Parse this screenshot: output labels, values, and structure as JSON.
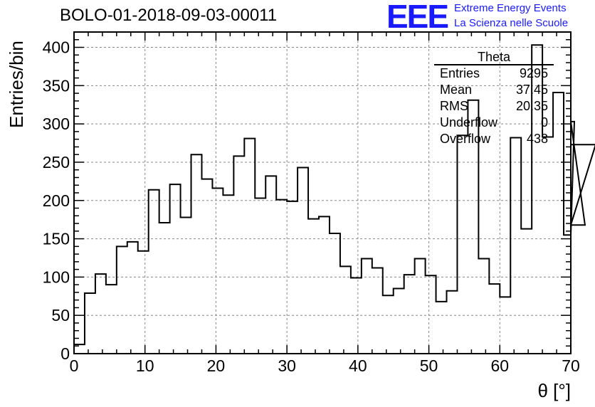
{
  "header": {
    "title": "BOLO-01-2018-09-03-00011",
    "logo_text": "EEE",
    "logo_line1": "Extreme Energy Events",
    "logo_line2": "La Scienza nelle Scuole"
  },
  "stats_box": {
    "title": "Theta",
    "rows": [
      {
        "label": "Entries",
        "value": "9295"
      },
      {
        "label": "Mean",
        "value": "37.45"
      },
      {
        "label": "RMS",
        "value": "20.35"
      },
      {
        "label": "Underflow",
        "value": "0"
      },
      {
        "label": "Overflow",
        "value": "438"
      }
    ]
  },
  "colors": {
    "line": "#000000",
    "grid": "#888888",
    "logo": "#1a1aff"
  },
  "chart_data": {
    "type": "bar",
    "style": "step-histogram",
    "title": "BOLO-01-2018-09-03-00011",
    "xlabel": "θ [°]",
    "ylabel": "Entries/bin",
    "xlim": [
      0,
      70
    ],
    "ylim": [
      0,
      420
    ],
    "grid": true,
    "x_ticks": [
      0,
      10,
      20,
      30,
      40,
      50,
      60,
      70
    ],
    "y_ticks": [
      0,
      50,
      100,
      150,
      200,
      250,
      300,
      350,
      400
    ],
    "bin_width": 1.5,
    "bin_start": 0,
    "values": [
      12,
      79,
      104,
      90,
      140,
      146,
      134,
      214,
      171,
      221,
      178,
      260,
      228,
      216,
      207,
      258,
      281,
      203,
      232,
      201,
      199,
      243,
      176,
      179,
      157,
      114,
      99,
      124,
      112,
      76,
      85,
      103,
      124,
      102,
      68,
      82,
      285,
      331,
      124,
      91,
      74,
      282,
      163,
      403,
      283,
      341,
      155,
      303,
      168,
      273
    ]
  }
}
